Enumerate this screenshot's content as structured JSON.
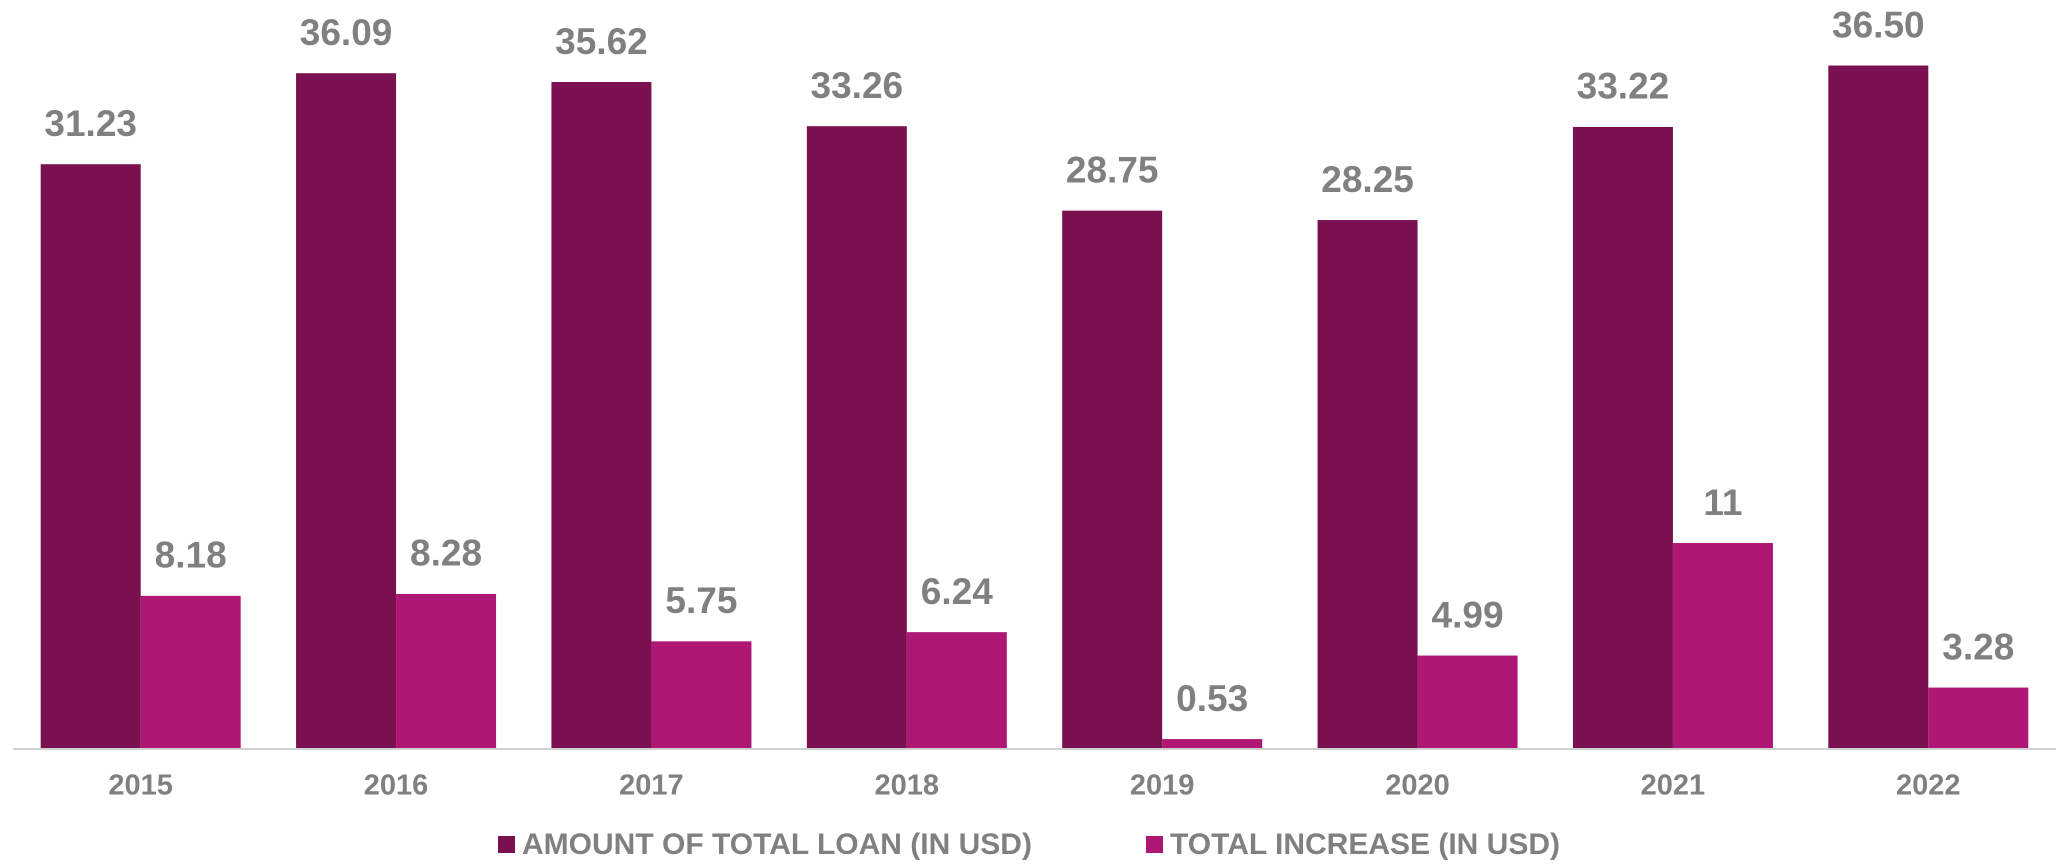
{
  "chart_data": {
    "type": "bar",
    "categories": [
      "2015",
      "2016",
      "2017",
      "2018",
      "2019",
      "2020",
      "2021",
      "2022"
    ],
    "series": [
      {
        "name": "AMOUNT OF TOTAL LOAN (IN USD)",
        "color": "#7b1050",
        "values": [
          31.23,
          36.09,
          35.62,
          33.26,
          28.75,
          28.25,
          33.22,
          36.5
        ],
        "value_labels": [
          "31.23",
          "36.09",
          "35.62",
          "33.26",
          "28.75",
          "28.25",
          "33.22",
          "36.50"
        ]
      },
      {
        "name": "TOTAL INCREASE (IN USD)",
        "color": "#ae1773",
        "values": [
          8.18,
          8.28,
          5.75,
          6.24,
          0.53,
          4.99,
          11,
          3.28
        ],
        "value_labels": [
          "8.18",
          "8.28",
          "5.75",
          "6.24",
          "0.53",
          "4.99",
          "11",
          "3.28"
        ]
      }
    ],
    "ylim": [
      0,
      40
    ],
    "grid": false,
    "legend": "bottom"
  }
}
